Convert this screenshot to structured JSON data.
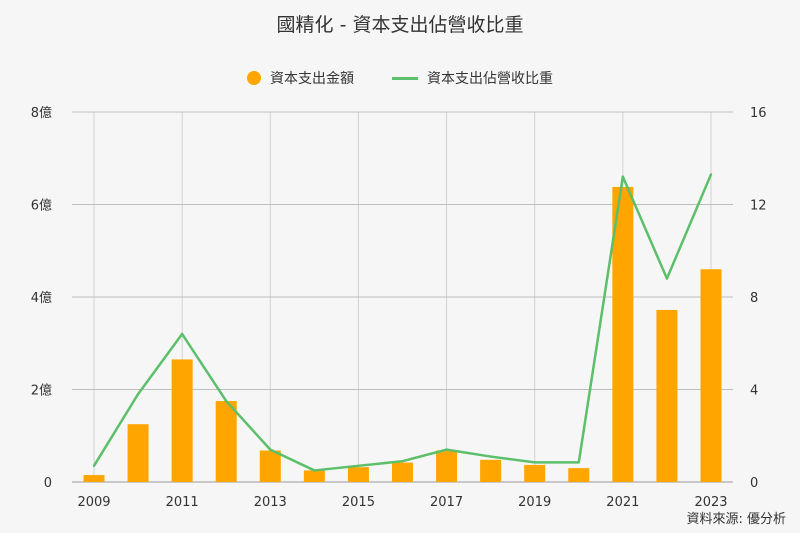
{
  "chart_data": {
    "type": "bar",
    "title": "國精化 - 資本支出佔營收比重",
    "x": [
      2009,
      2010,
      2011,
      2012,
      2013,
      2014,
      2015,
      2016,
      2017,
      2018,
      2019,
      2020,
      2021,
      2022,
      2023
    ],
    "x_tick_labels": [
      "2009",
      "2011",
      "2013",
      "2015",
      "2017",
      "2019",
      "2021",
      "2023"
    ],
    "series": [
      {
        "name": "資本支出金額",
        "type": "bar",
        "axis": "left",
        "color": "#FFA500",
        "values": [
          0.15,
          1.25,
          2.65,
          1.75,
          0.68,
          0.25,
          0.32,
          0.42,
          0.68,
          0.48,
          0.37,
          0.3,
          6.38,
          3.72,
          4.6
        ]
      },
      {
        "name": "資本支出佔營收比重",
        "type": "line",
        "axis": "right",
        "color": "#5CBF6A",
        "values": [
          0.7,
          3.8,
          6.4,
          3.5,
          1.4,
          0.5,
          0.7,
          0.9,
          1.4,
          1.1,
          0.85,
          0.85,
          13.2,
          8.8,
          13.3
        ]
      }
    ],
    "y_left": {
      "ticks": [
        "0",
        "2億",
        "4億",
        "6億",
        "8億"
      ],
      "ylim": [
        0,
        8
      ]
    },
    "y_right": {
      "ticks": [
        "0",
        "4",
        "8",
        "12",
        "16"
      ],
      "ylim": [
        0,
        16
      ]
    },
    "grid": true,
    "legend_position": "top-center"
  },
  "source": "資料來源: 優分析"
}
